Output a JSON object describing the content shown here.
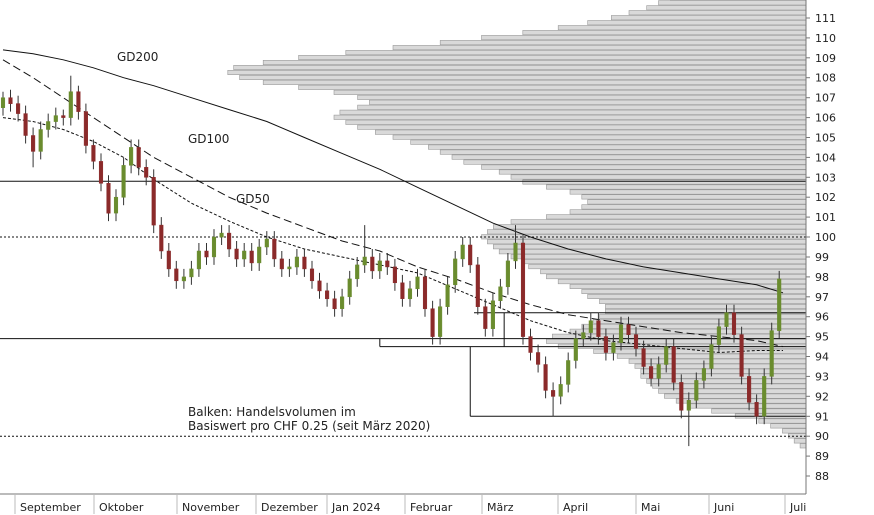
{
  "chart_data": {
    "type": "candlestick",
    "title": "",
    "xlabel": "",
    "ylabel": "",
    "ylim": [
      87,
      112
    ],
    "y_ticks": [
      88,
      89,
      90,
      91,
      92,
      93,
      94,
      95,
      96,
      97,
      98,
      99,
      100,
      101,
      102,
      103,
      104,
      105,
      106,
      107,
      108,
      109,
      110,
      111
    ],
    "months": [
      "September",
      "Oktober",
      "November",
      "Dezember",
      "Jan 2024",
      "Februar",
      "März",
      "April",
      "Mai",
      "Juni",
      "Juli"
    ],
    "moving_average_labels": [
      "GD200",
      "GD100",
      "GD50"
    ],
    "annotation_lines": [
      "Balken: Handelsvolumen im",
      "Basiswert pro CHF 0.25 (seit März 2020)"
    ],
    "horizontal_lines": {
      "solid": [
        102.8,
        94.9,
        96.2,
        94.5,
        91.0
      ],
      "dotted": [
        100.0,
        90.0
      ]
    },
    "colors": {
      "up": "#6a8c2e",
      "down": "#8b2a2a",
      "volume_fill": "#d9d9d9",
      "volume_stroke": "#9a9a9a",
      "line": "#111111"
    },
    "volume_profile": [
      {
        "price": 89.5,
        "volume": 0.01
      },
      {
        "price": 89.75,
        "volume": 0.02
      },
      {
        "price": 90.0,
        "volume": 0.03
      },
      {
        "price": 90.25,
        "volume": 0.04
      },
      {
        "price": 90.5,
        "volume": 0.06
      },
      {
        "price": 90.75,
        "volume": 0.08
      },
      {
        "price": 91.0,
        "volume": 0.12
      },
      {
        "price": 91.25,
        "volume": 0.16
      },
      {
        "price": 91.5,
        "volume": 0.2
      },
      {
        "price": 91.75,
        "volume": 0.22
      },
      {
        "price": 92.0,
        "volume": 0.24
      },
      {
        "price": 92.25,
        "volume": 0.25
      },
      {
        "price": 92.5,
        "volume": 0.26
      },
      {
        "price": 92.75,
        "volume": 0.27
      },
      {
        "price": 93.0,
        "volume": 0.28
      },
      {
        "price": 93.25,
        "volume": 0.28
      },
      {
        "price": 93.5,
        "volume": 0.29
      },
      {
        "price": 93.75,
        "volume": 0.3
      },
      {
        "price": 94.0,
        "volume": 0.32
      },
      {
        "price": 94.25,
        "volume": 0.36
      },
      {
        "price": 94.5,
        "volume": 0.42
      },
      {
        "price": 94.75,
        "volume": 0.44
      },
      {
        "price": 95.0,
        "volume": 0.43
      },
      {
        "price": 95.25,
        "volume": 0.4
      },
      {
        "price": 95.5,
        "volume": 0.38
      },
      {
        "price": 95.75,
        "volume": 0.36
      },
      {
        "price": 96.0,
        "volume": 0.35
      },
      {
        "price": 96.25,
        "volume": 0.34
      },
      {
        "price": 96.5,
        "volume": 0.34
      },
      {
        "price": 96.75,
        "volume": 0.35
      },
      {
        "price": 97.0,
        "volume": 0.37
      },
      {
        "price": 97.25,
        "volume": 0.38
      },
      {
        "price": 97.5,
        "volume": 0.4
      },
      {
        "price": 97.75,
        "volume": 0.42
      },
      {
        "price": 98.0,
        "volume": 0.44
      },
      {
        "price": 98.25,
        "volume": 0.45
      },
      {
        "price": 98.5,
        "volume": 0.47
      },
      {
        "price": 98.75,
        "volume": 0.48
      },
      {
        "price": 99.0,
        "volume": 0.5
      },
      {
        "price": 99.25,
        "volume": 0.52
      },
      {
        "price": 99.5,
        "volume": 0.53
      },
      {
        "price": 99.75,
        "volume": 0.54
      },
      {
        "price": 100.0,
        "volume": 0.55
      },
      {
        "price": 100.25,
        "volume": 0.54
      },
      {
        "price": 100.5,
        "volume": 0.53
      },
      {
        "price": 100.75,
        "volume": 0.5
      },
      {
        "price": 101.0,
        "volume": 0.44
      },
      {
        "price": 101.25,
        "volume": 0.4
      },
      {
        "price": 101.5,
        "volume": 0.38
      },
      {
        "price": 101.75,
        "volume": 0.37
      },
      {
        "price": 102.0,
        "volume": 0.38
      },
      {
        "price": 102.25,
        "volume": 0.4
      },
      {
        "price": 102.5,
        "volume": 0.44
      },
      {
        "price": 102.75,
        "volume": 0.48
      },
      {
        "price": 103.0,
        "volume": 0.5
      },
      {
        "price": 103.25,
        "volume": 0.52
      },
      {
        "price": 103.5,
        "volume": 0.55
      },
      {
        "price": 103.75,
        "volume": 0.58
      },
      {
        "price": 104.0,
        "volume": 0.6
      },
      {
        "price": 104.25,
        "volume": 0.62
      },
      {
        "price": 104.5,
        "volume": 0.64
      },
      {
        "price": 104.75,
        "volume": 0.67
      },
      {
        "price": 105.0,
        "volume": 0.7
      },
      {
        "price": 105.25,
        "volume": 0.73
      },
      {
        "price": 105.5,
        "volume": 0.76
      },
      {
        "price": 105.75,
        "volume": 0.78
      },
      {
        "price": 106.0,
        "volume": 0.8
      },
      {
        "price": 106.25,
        "volume": 0.79
      },
      {
        "price": 106.5,
        "volume": 0.76
      },
      {
        "price": 106.75,
        "volume": 0.74
      },
      {
        "price": 107.0,
        "volume": 0.76
      },
      {
        "price": 107.25,
        "volume": 0.8
      },
      {
        "price": 107.5,
        "volume": 0.86
      },
      {
        "price": 107.75,
        "volume": 0.92
      },
      {
        "price": 108.0,
        "volume": 0.96
      },
      {
        "price": 108.25,
        "volume": 0.98
      },
      {
        "price": 108.5,
        "volume": 0.97
      },
      {
        "price": 108.75,
        "volume": 0.92
      },
      {
        "price": 109.0,
        "volume": 0.86
      },
      {
        "price": 109.25,
        "volume": 0.78
      },
      {
        "price": 109.5,
        "volume": 0.7
      },
      {
        "price": 109.75,
        "volume": 0.62
      },
      {
        "price": 110.0,
        "volume": 0.55
      },
      {
        "price": 110.25,
        "volume": 0.48
      },
      {
        "price": 110.5,
        "volume": 0.42
      },
      {
        "price": 110.75,
        "volume": 0.37
      },
      {
        "price": 111.0,
        "volume": 0.33
      },
      {
        "price": 111.25,
        "volume": 0.3
      },
      {
        "price": 111.5,
        "volume": 0.27
      },
      {
        "price": 111.75,
        "volume": 0.25
      },
      {
        "price": 112.0,
        "volume": 0.23
      }
    ],
    "series": [
      {
        "name": "GD200",
        "x": [
          0,
          8,
          16,
          24,
          32,
          40,
          50,
          60,
          70,
          80,
          90,
          100,
          110,
          120,
          130,
          140,
          150,
          160,
          170,
          180,
          190,
          200,
          207
        ],
        "values": [
          109.4,
          109.2,
          108.9,
          108.5,
          108.0,
          107.6,
          107.0,
          106.4,
          105.8,
          105.0,
          104.2,
          103.4,
          102.5,
          101.6,
          100.7,
          100.0,
          99.4,
          98.9,
          98.5,
          98.2,
          97.9,
          97.6,
          97.2
        ]
      },
      {
        "name": "GD100",
        "x": [
          0,
          8,
          16,
          24,
          32,
          40,
          50,
          60,
          70,
          80,
          90,
          100,
          110,
          120,
          130,
          140,
          150,
          160,
          170,
          180,
          190,
          200,
          207
        ],
        "values": [
          108.9,
          108.0,
          107.0,
          106.0,
          105.0,
          104.0,
          103.0,
          102.0,
          101.2,
          100.5,
          99.8,
          99.3,
          98.5,
          97.9,
          97.2,
          96.6,
          96.1,
          95.8,
          95.5,
          95.2,
          95.0,
          94.8,
          94.5
        ]
      },
      {
        "name": "GD50",
        "x": [
          0,
          8,
          16,
          24,
          32,
          40,
          50,
          60,
          70,
          80,
          90,
          100,
          110,
          120,
          130,
          140,
          150,
          160,
          170,
          180,
          190,
          200,
          207
        ],
        "values": [
          106.0,
          105.8,
          105.4,
          104.8,
          104.0,
          102.9,
          101.7,
          100.8,
          100.0,
          99.4,
          99.0,
          98.6,
          98.2,
          97.4,
          96.6,
          95.8,
          95.2,
          94.8,
          94.6,
          94.4,
          94.2,
          94.3,
          94.3
        ]
      },
      {
        "name": "OHLC",
        "x": [
          0,
          2,
          4,
          6,
          8,
          10,
          12,
          14,
          16,
          18,
          20,
          22,
          24,
          26,
          28,
          30,
          32,
          34,
          36,
          38,
          40,
          42,
          44,
          46,
          48,
          50,
          52,
          54,
          56,
          58,
          60,
          62,
          64,
          66,
          68,
          70,
          72,
          74,
          76,
          78,
          80,
          82,
          84,
          86,
          88,
          90,
          92,
          94,
          96,
          98,
          100,
          102,
          104,
          106,
          108,
          110,
          112,
          114,
          116,
          118,
          120,
          122,
          124,
          126,
          128,
          130,
          132,
          134,
          136,
          138,
          140,
          142,
          144,
          146,
          148,
          150,
          152,
          154,
          156,
          158,
          160,
          162,
          164,
          166,
          168,
          170,
          172,
          174,
          176,
          178,
          180,
          182,
          184,
          186,
          188,
          190,
          192,
          194,
          196,
          198,
          200,
          202,
          204,
          206
        ],
        "open": [
          106.5,
          107.0,
          106.7,
          106.2,
          105.1,
          104.3,
          105.4,
          105.8,
          106.1,
          106.0,
          107.3,
          106.3,
          104.6,
          103.8,
          102.7,
          101.2,
          102.0,
          103.6,
          104.5,
          103.5,
          103.0,
          100.6,
          99.3,
          98.4,
          97.8,
          98.0,
          98.4,
          99.3,
          99.0,
          100.0,
          100.2,
          99.4,
          98.9,
          99.3,
          98.7,
          99.5,
          99.9,
          98.9,
          98.4,
          98.5,
          99.0,
          98.4,
          97.8,
          97.3,
          96.9,
          96.4,
          97.0,
          97.9,
          98.6,
          99.0,
          98.3,
          98.8,
          98.5,
          97.7,
          96.9,
          97.4,
          98.0,
          96.4,
          95.0,
          96.5,
          97.6,
          98.9,
          99.6,
          98.6,
          96.5,
          95.4,
          96.8,
          97.5,
          98.8,
          99.7,
          95.0,
          94.2,
          93.6,
          92.3,
          92.0,
          92.6,
          93.8,
          94.9,
          95.2,
          95.8,
          95.0,
          94.2,
          94.7,
          95.6,
          95.1,
          94.4,
          93.5,
          92.9,
          93.6,
          94.5,
          92.7,
          91.3,
          91.8,
          92.8,
          93.4,
          94.6,
          95.5,
          96.2,
          95.1,
          93.0,
          91.7,
          91.0,
          93.0,
          95.3
        ],
        "close": [
          107.0,
          106.7,
          106.2,
          105.1,
          104.3,
          105.4,
          105.8,
          106.1,
          106.0,
          107.3,
          106.3,
          104.6,
          103.8,
          102.7,
          101.2,
          102.0,
          103.6,
          104.5,
          103.5,
          103.0,
          100.6,
          99.3,
          98.4,
          97.8,
          98.0,
          98.4,
          99.3,
          99.0,
          100.0,
          100.2,
          99.4,
          98.9,
          99.3,
          98.7,
          99.5,
          99.9,
          98.9,
          98.4,
          98.5,
          99.0,
          98.4,
          97.8,
          97.3,
          96.9,
          96.4,
          97.0,
          97.9,
          98.6,
          99.0,
          98.3,
          98.8,
          98.5,
          97.7,
          96.9,
          97.4,
          98.0,
          96.4,
          95.0,
          96.5,
          97.6,
          98.9,
          99.6,
          98.6,
          96.5,
          95.4,
          96.8,
          97.5,
          98.8,
          99.7,
          95.0,
          94.2,
          93.6,
          92.3,
          92.0,
          92.6,
          93.8,
          94.9,
          95.2,
          95.8,
          95.0,
          94.2,
          94.7,
          95.6,
          95.1,
          94.4,
          93.5,
          92.9,
          93.6,
          94.5,
          92.7,
          91.3,
          91.8,
          92.8,
          93.4,
          94.6,
          95.5,
          96.2,
          95.1,
          93.0,
          91.7,
          91.0,
          93.0,
          95.3,
          97.9
        ],
        "high": [
          107.3,
          107.4,
          107.1,
          106.6,
          105.5,
          105.8,
          106.2,
          106.5,
          106.4,
          108.1,
          107.6,
          106.7,
          104.9,
          104.2,
          103.1,
          102.4,
          104.0,
          104.9,
          104.9,
          103.9,
          103.4,
          101.0,
          99.7,
          98.8,
          98.4,
          98.8,
          99.7,
          99.7,
          100.4,
          100.6,
          100.6,
          99.8,
          99.7,
          99.7,
          99.9,
          100.3,
          100.3,
          99.3,
          98.9,
          99.4,
          99.4,
          98.8,
          98.2,
          97.7,
          97.3,
          97.4,
          98.3,
          99.0,
          100.6,
          99.4,
          99.2,
          99.2,
          98.9,
          98.1,
          97.8,
          98.4,
          98.4,
          96.8,
          96.9,
          98.0,
          99.3,
          100.0,
          100.0,
          99.0,
          96.9,
          97.2,
          97.9,
          99.2,
          100.6,
          100.1,
          95.4,
          94.6,
          94.0,
          92.7,
          93.0,
          94.2,
          95.3,
          95.6,
          96.2,
          96.2,
          95.4,
          95.1,
          96.0,
          96.0,
          95.5,
          94.8,
          93.9,
          94.0,
          94.9,
          94.9,
          93.1,
          92.2,
          93.2,
          93.8,
          95.0,
          95.9,
          96.6,
          96.6,
          95.5,
          93.4,
          92.1,
          93.4,
          95.7,
          98.3
        ],
        "low": [
          106.1,
          106.3,
          105.8,
          104.7,
          103.5,
          103.9,
          105.0,
          105.4,
          105.6,
          105.6,
          105.9,
          104.2,
          103.4,
          102.3,
          100.8,
          100.8,
          101.6,
          103.2,
          103.1,
          102.6,
          100.2,
          98.9,
          98.0,
          97.4,
          97.4,
          97.6,
          98.0,
          98.6,
          98.6,
          99.6,
          99.0,
          98.5,
          98.5,
          98.3,
          98.3,
          99.1,
          98.5,
          98.0,
          98.0,
          98.1,
          98.0,
          97.4,
          96.9,
          96.5,
          96.0,
          96.0,
          96.6,
          97.5,
          98.2,
          97.9,
          97.9,
          98.1,
          97.3,
          96.5,
          96.5,
          97.0,
          96.0,
          94.6,
          94.6,
          96.1,
          97.2,
          98.5,
          98.2,
          96.1,
          95.0,
          95.0,
          96.4,
          97.1,
          98.4,
          94.6,
          93.8,
          93.2,
          91.9,
          91.0,
          91.6,
          92.2,
          93.4,
          94.5,
          94.8,
          94.6,
          93.8,
          93.8,
          94.3,
          94.7,
          94.0,
          93.1,
          92.5,
          92.5,
          93.2,
          92.3,
          90.9,
          89.5,
          91.4,
          92.4,
          93.0,
          94.2,
          95.1,
          94.7,
          92.6,
          91.3,
          90.6,
          90.6,
          92.6,
          94.9
        ]
      }
    ]
  }
}
